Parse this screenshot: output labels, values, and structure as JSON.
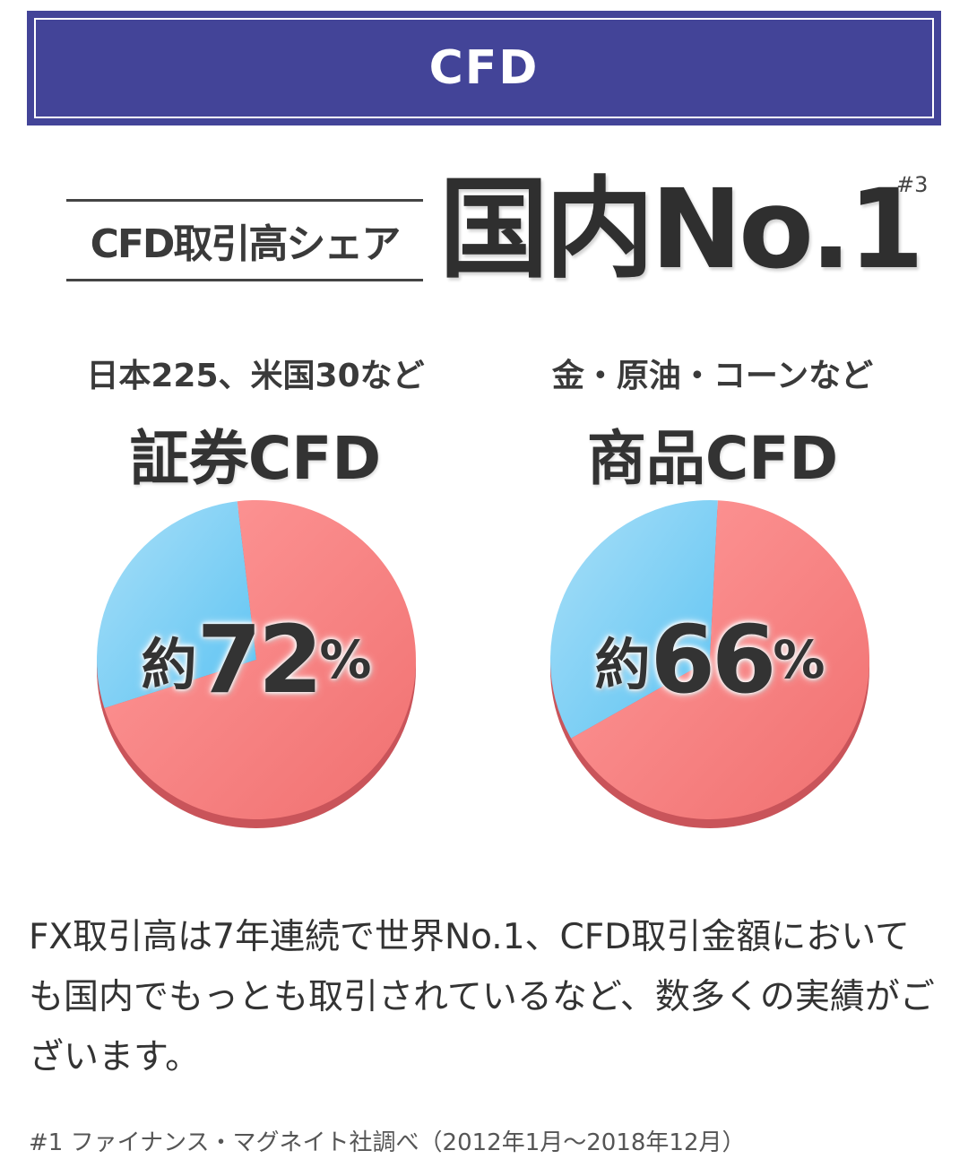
{
  "banner": {
    "title": "CFD"
  },
  "headline": {
    "label": "CFD取引高シェア",
    "main": "国内No.1",
    "sup": "#3"
  },
  "left": {
    "subtitle": "日本225、米国30など",
    "title": "証券CFD",
    "pct_prefix": "約",
    "pct_value": "72",
    "pct_unit": "%",
    "share": 0.72
  },
  "right": {
    "subtitle": "金・原油・コーンなど",
    "title": "商品CFD",
    "pct_prefix": "約",
    "pct_value": "66",
    "pct_unit": "%",
    "share": 0.66
  },
  "colors": {
    "banner": "#434498",
    "slice_main": "#f07070",
    "slice_rest": "#5cc3f2"
  },
  "description": "FX取引高は7年連続で世界No.1、CFD取引金額においても国内でもっとも取引されているなど、数多くの実績がございます。",
  "footnote": "#1 ファイナンス・マグネイト社調べ（2012年1月〜2018年12月）"
}
